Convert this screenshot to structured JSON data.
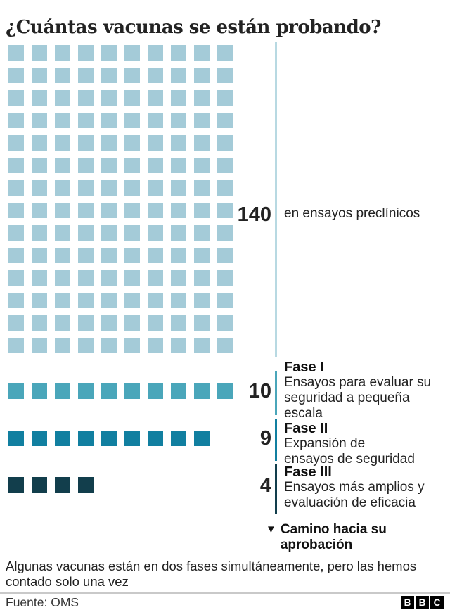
{
  "title": "¿Cuántas vacunas se están probando?",
  "chart_data": {
    "type": "waffle",
    "title": "¿Cuántas vacunas se están probando?",
    "categories": [
      "en ensayos preclínicos",
      "Fase I",
      "Fase II",
      "Fase III"
    ],
    "values": [
      140,
      10,
      9,
      4
    ],
    "legend_position": "right",
    "colors": [
      "#a4cbd8",
      "#4aa6ba",
      "#117fa0",
      "#123e4c"
    ]
  },
  "sections": [
    {
      "name": "preclinicos",
      "count": 140,
      "value_label": "140",
      "description": "en ensayos preclínicos",
      "square_color": "#a4cbd8",
      "line_color": "#b8d9e2"
    },
    {
      "name": "fase-1",
      "count": 10,
      "value_label": "10",
      "phase_label": "Fase I",
      "description": "Ensayos para evaluar su seguridad a pequeña escala",
      "square_color": "#4aa6ba",
      "line_color": "#4aa6ba"
    },
    {
      "name": "fase-2",
      "count": 9,
      "value_label": "9",
      "phase_label": "Fase II",
      "description": "Expansión de ensayos de seguridad",
      "square_color": "#117fa0",
      "line_color": "#117fa0"
    },
    {
      "name": "fase-3",
      "count": 4,
      "value_label": "4",
      "phase_label": "Fase III",
      "description": "Ensayos más amplios y evaluación de eficacia",
      "square_color": "#123e4c",
      "line_color": "#123e4c"
    }
  ],
  "approval": {
    "icon": "▼",
    "label": "Camino hacia su aprobación"
  },
  "footnote": "Algunas vacunas están en dos fases simultáneamente, pero las hemos contado solo una vez",
  "footer": {
    "source": "Fuente: OMS",
    "logo_letters": [
      "B",
      "B",
      "C"
    ]
  }
}
